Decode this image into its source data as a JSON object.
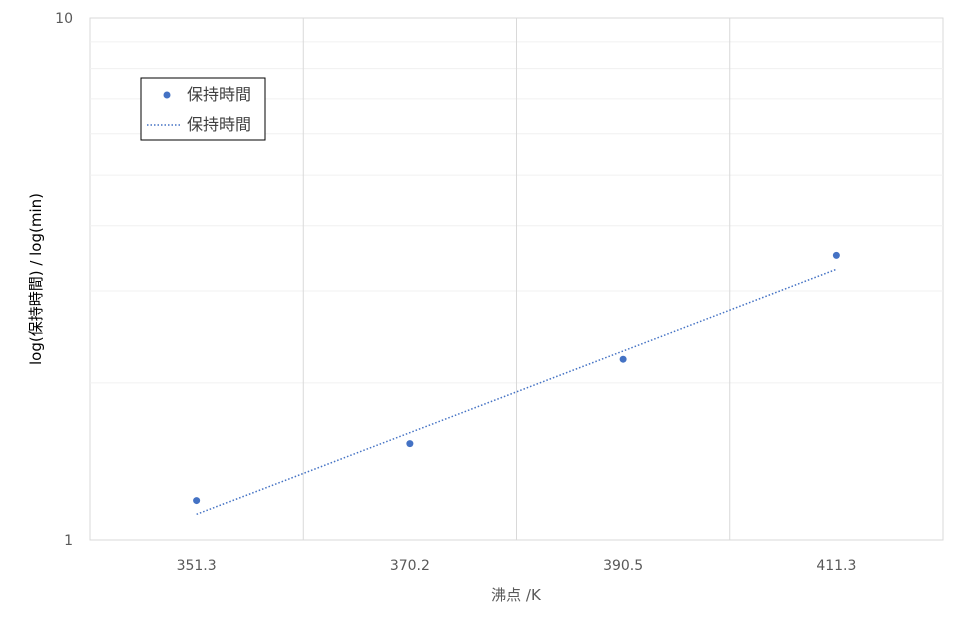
{
  "chart_data": {
    "type": "scatter",
    "title": "",
    "xlabel": "沸点 /K",
    "ylabel": "log(保持時間) / log(min)",
    "yscale": "log",
    "ylim": [
      1,
      10
    ],
    "y_tick_labels": [
      "1",
      "10"
    ],
    "categories": [
      "351.3",
      "370.2",
      "390.5",
      "411.3"
    ],
    "grid": true,
    "legend_position": "top-left",
    "series": [
      {
        "name": "保持時間",
        "kind": "points",
        "color": "#4472c4",
        "values": [
          1.19,
          1.53,
          2.22,
          3.51
        ]
      },
      {
        "name": "保持時間",
        "kind": "trendline-dotted",
        "color": "#4472c4",
        "values": [
          1.12,
          1.6,
          2.3,
          3.3
        ]
      }
    ]
  }
}
